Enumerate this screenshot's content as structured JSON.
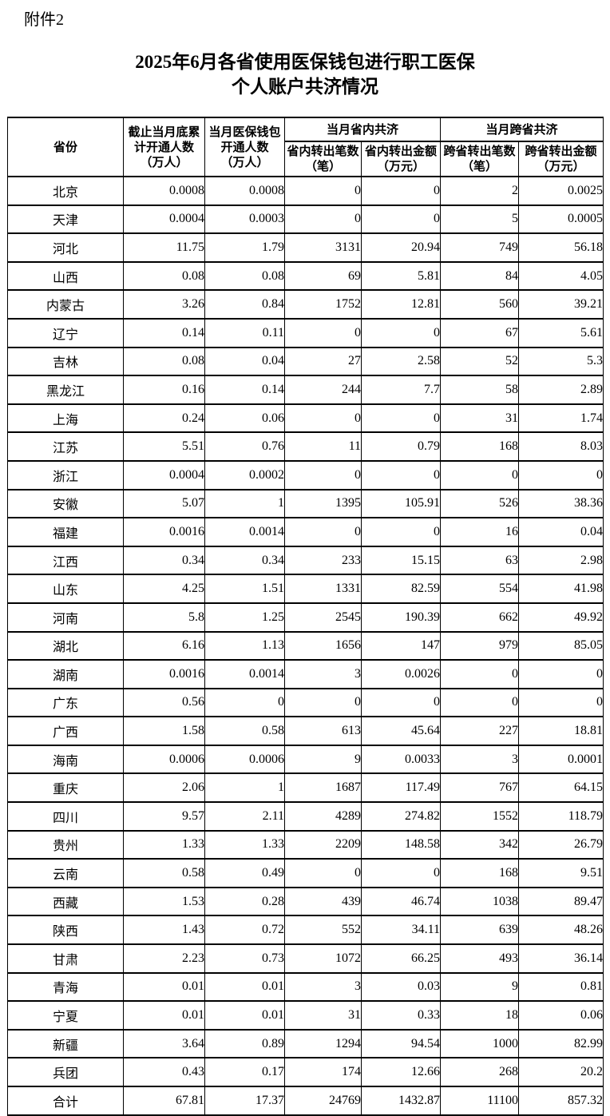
{
  "attachment_label": "附件2",
  "title": {
    "line1": "2025年6月各省使用医保钱包进行职工医保",
    "line2": "个人账户共济情况"
  },
  "table": {
    "header": {
      "province": "省份",
      "cumulative_openings": "截止当月底累\n计开通人数\n（万人）",
      "monthly_wallet_openings": "当月医保钱包\n开通人数\n（万人）",
      "intra_province_group": "当月省内共济",
      "cross_province_group": "当月跨省共济",
      "intra_transfer_count": "省内转出笔数\n（笔）",
      "intra_transfer_amount": "省内转出金额\n（万元）",
      "cross_transfer_count": "跨省转出笔数\n（笔）",
      "cross_transfer_amount": "跨省转出金额\n（万元）"
    },
    "rows": [
      [
        "北京",
        "0.0008",
        "0.0008",
        "0",
        "0",
        "2",
        "0.0025"
      ],
      [
        "天津",
        "0.0004",
        "0.0003",
        "0",
        "0",
        "5",
        "0.0005"
      ],
      [
        "河北",
        "11.75",
        "1.79",
        "3131",
        "20.94",
        "749",
        "56.18"
      ],
      [
        "山西",
        "0.08",
        "0.08",
        "69",
        "5.81",
        "84",
        "4.05"
      ],
      [
        "内蒙古",
        "3.26",
        "0.84",
        "1752",
        "12.81",
        "560",
        "39.21"
      ],
      [
        "辽宁",
        "0.14",
        "0.11",
        "0",
        "0",
        "67",
        "5.61"
      ],
      [
        "吉林",
        "0.08",
        "0.04",
        "27",
        "2.58",
        "52",
        "5.3"
      ],
      [
        "黑龙江",
        "0.16",
        "0.14",
        "244",
        "7.7",
        "58",
        "2.89"
      ],
      [
        "上海",
        "0.24",
        "0.06",
        "0",
        "0",
        "31",
        "1.74"
      ],
      [
        "江苏",
        "5.51",
        "0.76",
        "11",
        "0.79",
        "168",
        "8.03"
      ],
      [
        "浙江",
        "0.0004",
        "0.0002",
        "0",
        "0",
        "0",
        "0"
      ],
      [
        "安徽",
        "5.07",
        "1",
        "1395",
        "105.91",
        "526",
        "38.36"
      ],
      [
        "福建",
        "0.0016",
        "0.0014",
        "0",
        "0",
        "16",
        "0.04"
      ],
      [
        "江西",
        "0.34",
        "0.34",
        "233",
        "15.15",
        "63",
        "2.98"
      ],
      [
        "山东",
        "4.25",
        "1.51",
        "1331",
        "82.59",
        "554",
        "41.98"
      ],
      [
        "河南",
        "5.8",
        "1.25",
        "2545",
        "190.39",
        "662",
        "49.92"
      ],
      [
        "湖北",
        "6.16",
        "1.13",
        "1656",
        "147",
        "979",
        "85.05"
      ],
      [
        "湖南",
        "0.0016",
        "0.0014",
        "3",
        "0.0026",
        "0",
        "0"
      ],
      [
        "广东",
        "0.56",
        "0",
        "0",
        "0",
        "0",
        "0"
      ],
      [
        "广西",
        "1.58",
        "0.58",
        "613",
        "45.64",
        "227",
        "18.81"
      ],
      [
        "海南",
        "0.0006",
        "0.0006",
        "9",
        "0.0033",
        "3",
        "0.0001"
      ],
      [
        "重庆",
        "2.06",
        "1",
        "1687",
        "117.49",
        "767",
        "64.15"
      ],
      [
        "四川",
        "9.57",
        "2.11",
        "4289",
        "274.82",
        "1552",
        "118.79"
      ],
      [
        "贵州",
        "1.33",
        "1.33",
        "2209",
        "148.58",
        "342",
        "26.79"
      ],
      [
        "云南",
        "0.58",
        "0.49",
        "0",
        "0",
        "168",
        "9.51"
      ],
      [
        "西藏",
        "1.53",
        "0.28",
        "439",
        "46.74",
        "1038",
        "89.47"
      ],
      [
        "陕西",
        "1.43",
        "0.72",
        "552",
        "34.11",
        "639",
        "48.26"
      ],
      [
        "甘肃",
        "2.23",
        "0.73",
        "1072",
        "66.25",
        "493",
        "36.14"
      ],
      [
        "青海",
        "0.01",
        "0.01",
        "3",
        "0.03",
        "9",
        "0.81"
      ],
      [
        "宁夏",
        "0.01",
        "0.01",
        "31",
        "0.33",
        "18",
        "0.06"
      ],
      [
        "新疆",
        "3.64",
        "0.89",
        "1294",
        "94.54",
        "1000",
        "82.99"
      ],
      [
        "兵团",
        "0.43",
        "0.17",
        "174",
        "12.66",
        "268",
        "20.2"
      ],
      [
        "合计",
        "67.81",
        "17.37",
        "24769",
        "1432.87",
        "11100",
        "857.32"
      ]
    ]
  }
}
